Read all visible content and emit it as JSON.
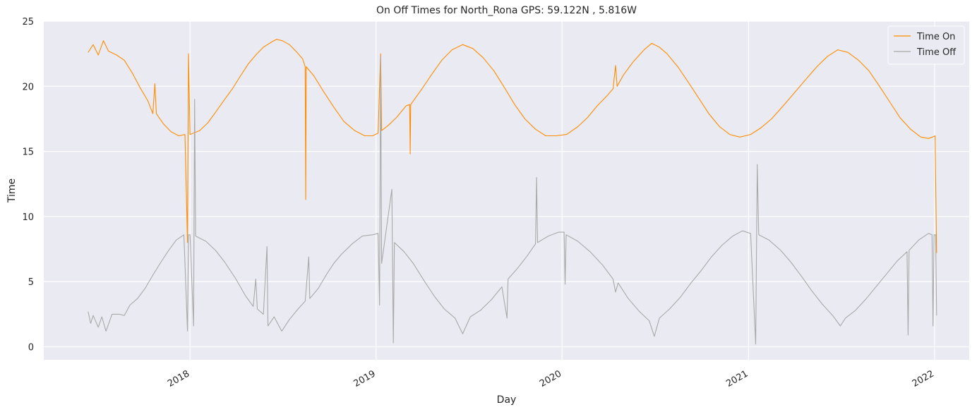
{
  "chart_data": {
    "type": "line",
    "title": "On Off Times for North_Rona  GPS: 59.122N , 5.816W",
    "xlabel": "Day",
    "ylabel": "Time",
    "xlim": [
      "2017-03-20",
      "2022-03-10"
    ],
    "ylim": [
      -1,
      25
    ],
    "x_ticks": [
      {
        "date": "2018-01-01",
        "label": "2018"
      },
      {
        "date": "2019-01-01",
        "label": "2019"
      },
      {
        "date": "2020-01-01",
        "label": "2020"
      },
      {
        "date": "2021-01-01",
        "label": "2021"
      },
      {
        "date": "2022-01-01",
        "label": "2022"
      }
    ],
    "y_ticks": [
      0,
      5,
      10,
      15,
      20,
      25
    ],
    "grid": true,
    "legend": "top-right",
    "series": [
      {
        "name": "Time On",
        "color": "#ff8c00",
        "points": [
          [
            "2017-06-15",
            22.6
          ],
          [
            "2017-06-25",
            23.2
          ],
          [
            "2017-07-05",
            22.4
          ],
          [
            "2017-07-15",
            23.5
          ],
          [
            "2017-07-25",
            22.7
          ],
          [
            "2017-08-10",
            22.4
          ],
          [
            "2017-08-25",
            22.0
          ],
          [
            "2017-09-10",
            21.0
          ],
          [
            "2017-09-25",
            19.9
          ],
          [
            "2017-10-10",
            18.9
          ],
          [
            "2017-10-20",
            17.9
          ],
          [
            "2017-10-24",
            20.2
          ],
          [
            "2017-10-27",
            17.9
          ],
          [
            "2017-11-10",
            17.1
          ],
          [
            "2017-11-25",
            16.5
          ],
          [
            "2017-12-10",
            16.2
          ],
          [
            "2017-12-22",
            16.3
          ],
          [
            "2017-12-27",
            8.0
          ],
          [
            "2017-12-29",
            22.5
          ],
          [
            "2018-01-01",
            16.3
          ],
          [
            "2018-01-20",
            16.6
          ],
          [
            "2018-02-05",
            17.2
          ],
          [
            "2018-02-20",
            18.0
          ],
          [
            "2018-03-10",
            19.0
          ],
          [
            "2018-03-25",
            19.8
          ],
          [
            "2018-04-10",
            20.8
          ],
          [
            "2018-04-25",
            21.7
          ],
          [
            "2018-05-10",
            22.4
          ],
          [
            "2018-05-25",
            23.0
          ],
          [
            "2018-06-10",
            23.4
          ],
          [
            "2018-06-20",
            23.6
          ],
          [
            "2018-07-01",
            23.5
          ],
          [
            "2018-07-15",
            23.2
          ],
          [
            "2018-07-30",
            22.6
          ],
          [
            "2018-08-10",
            22.1
          ],
          [
            "2018-08-15",
            21.5
          ],
          [
            "2018-08-16",
            11.3
          ],
          [
            "2018-08-17",
            21.5
          ],
          [
            "2018-09-01",
            20.8
          ],
          [
            "2018-09-20",
            19.6
          ],
          [
            "2018-10-10",
            18.4
          ],
          [
            "2018-10-30",
            17.3
          ],
          [
            "2018-11-20",
            16.6
          ],
          [
            "2018-12-10",
            16.2
          ],
          [
            "2018-12-25",
            16.2
          ],
          [
            "2019-01-05",
            16.4
          ],
          [
            "2019-01-10",
            22.5
          ],
          [
            "2019-01-12",
            16.6
          ],
          [
            "2019-01-25",
            17.0
          ],
          [
            "2019-02-10",
            17.6
          ],
          [
            "2019-03-01",
            18.5
          ],
          [
            "2019-03-08",
            18.6
          ],
          [
            "2019-03-09",
            14.8
          ],
          [
            "2019-03-10",
            18.6
          ],
          [
            "2019-04-01",
            19.8
          ],
          [
            "2019-04-20",
            20.9
          ],
          [
            "2019-05-10",
            22.0
          ],
          [
            "2019-05-30",
            22.8
          ],
          [
            "2019-06-20",
            23.2
          ],
          [
            "2019-07-10",
            22.9
          ],
          [
            "2019-07-30",
            22.2
          ],
          [
            "2019-08-20",
            21.2
          ],
          [
            "2019-09-10",
            19.9
          ],
          [
            "2019-09-30",
            18.6
          ],
          [
            "2019-10-20",
            17.5
          ],
          [
            "2019-11-10",
            16.7
          ],
          [
            "2019-11-30",
            16.2
          ],
          [
            "2019-12-20",
            16.2
          ],
          [
            "2020-01-10",
            16.3
          ],
          [
            "2020-02-01",
            16.9
          ],
          [
            "2020-02-20",
            17.6
          ],
          [
            "2020-03-10",
            18.5
          ],
          [
            "2020-03-30",
            19.3
          ],
          [
            "2020-04-10",
            19.8
          ],
          [
            "2020-04-15",
            21.6
          ],
          [
            "2020-04-18",
            20.0
          ],
          [
            "2020-05-01",
            20.9
          ],
          [
            "2020-05-20",
            21.9
          ],
          [
            "2020-06-10",
            22.8
          ],
          [
            "2020-06-25",
            23.3
          ],
          [
            "2020-07-10",
            23.0
          ],
          [
            "2020-07-25",
            22.5
          ],
          [
            "2020-08-15",
            21.5
          ],
          [
            "2020-09-05",
            20.3
          ],
          [
            "2020-09-25",
            19.1
          ],
          [
            "2020-10-15",
            17.9
          ],
          [
            "2020-11-05",
            16.9
          ],
          [
            "2020-11-25",
            16.3
          ],
          [
            "2020-12-15",
            16.1
          ],
          [
            "2021-01-05",
            16.3
          ],
          [
            "2021-01-25",
            16.8
          ],
          [
            "2021-02-15",
            17.5
          ],
          [
            "2021-03-10",
            18.5
          ],
          [
            "2021-04-01",
            19.5
          ],
          [
            "2021-04-25",
            20.6
          ],
          [
            "2021-05-15",
            21.5
          ],
          [
            "2021-06-05",
            22.3
          ],
          [
            "2021-06-25",
            22.8
          ],
          [
            "2021-07-15",
            22.6
          ],
          [
            "2021-08-05",
            22.0
          ],
          [
            "2021-08-25",
            21.2
          ],
          [
            "2021-09-15",
            20.0
          ],
          [
            "2021-10-05",
            18.8
          ],
          [
            "2021-10-25",
            17.6
          ],
          [
            "2021-11-15",
            16.7
          ],
          [
            "2021-12-05",
            16.1
          ],
          [
            "2021-12-20",
            16.0
          ],
          [
            "2021-12-28",
            16.1
          ],
          [
            "2022-01-02",
            16.2
          ],
          [
            "2022-01-05",
            7.2
          ]
        ]
      },
      {
        "name": "Time Off",
        "color": "#a9a9a9",
        "points": [
          [
            "2017-06-15",
            2.7
          ],
          [
            "2017-06-20",
            1.8
          ],
          [
            "2017-06-25",
            2.4
          ],
          [
            "2017-07-05",
            1.5
          ],
          [
            "2017-07-12",
            2.3
          ],
          [
            "2017-07-20",
            1.2
          ],
          [
            "2017-08-01",
            2.5
          ],
          [
            "2017-08-15",
            2.5
          ],
          [
            "2017-08-25",
            2.4
          ],
          [
            "2017-09-05",
            3.2
          ],
          [
            "2017-09-20",
            3.7
          ],
          [
            "2017-10-05",
            4.5
          ],
          [
            "2017-10-20",
            5.5
          ],
          [
            "2017-11-05",
            6.5
          ],
          [
            "2017-11-20",
            7.4
          ],
          [
            "2017-12-05",
            8.2
          ],
          [
            "2017-12-20",
            8.6
          ],
          [
            "2017-12-27",
            1.2
          ],
          [
            "2017-12-29",
            8.6
          ],
          [
            "2018-01-01",
            8.6
          ],
          [
            "2018-01-08",
            1.6
          ],
          [
            "2018-01-10",
            19.0
          ],
          [
            "2018-01-12",
            8.5
          ],
          [
            "2018-02-01",
            8.1
          ],
          [
            "2018-02-20",
            7.4
          ],
          [
            "2018-03-10",
            6.5
          ],
          [
            "2018-04-01",
            5.2
          ],
          [
            "2018-04-20",
            3.9
          ],
          [
            "2018-05-05",
            3.1
          ],
          [
            "2018-05-10",
            5.2
          ],
          [
            "2018-05-13",
            2.9
          ],
          [
            "2018-05-25",
            2.5
          ],
          [
            "2018-06-01",
            7.7
          ],
          [
            "2018-06-03",
            1.6
          ],
          [
            "2018-06-15",
            2.3
          ],
          [
            "2018-06-30",
            1.2
          ],
          [
            "2018-07-15",
            2.1
          ],
          [
            "2018-08-01",
            2.9
          ],
          [
            "2018-08-15",
            3.5
          ],
          [
            "2018-08-22",
            6.9
          ],
          [
            "2018-08-24",
            3.7
          ],
          [
            "2018-09-10",
            4.5
          ],
          [
            "2018-09-25",
            5.5
          ],
          [
            "2018-10-10",
            6.4
          ],
          [
            "2018-10-25",
            7.1
          ],
          [
            "2018-11-15",
            7.9
          ],
          [
            "2018-12-05",
            8.5
          ],
          [
            "2018-12-25",
            8.6
          ],
          [
            "2019-01-05",
            8.7
          ],
          [
            "2019-01-08",
            3.2
          ],
          [
            "2019-01-10",
            22.3
          ],
          [
            "2019-01-12",
            6.4
          ],
          [
            "2019-02-01",
            12.1
          ],
          [
            "2019-02-04",
            0.3
          ],
          [
            "2019-02-06",
            8.0
          ],
          [
            "2019-02-25",
            7.3
          ],
          [
            "2019-03-15",
            6.4
          ],
          [
            "2019-04-05",
            5.1
          ],
          [
            "2019-04-25",
            3.9
          ],
          [
            "2019-05-15",
            2.9
          ],
          [
            "2019-06-05",
            2.2
          ],
          [
            "2019-06-20",
            1.0
          ],
          [
            "2019-07-05",
            2.3
          ],
          [
            "2019-07-25",
            2.8
          ],
          [
            "2019-08-15",
            3.6
          ],
          [
            "2019-09-05",
            4.6
          ],
          [
            "2019-09-15",
            2.2
          ],
          [
            "2019-09-17",
            5.2
          ],
          [
            "2019-10-05",
            6.0
          ],
          [
            "2019-10-25",
            7.0
          ],
          [
            "2019-11-10",
            7.9
          ],
          [
            "2019-11-12",
            13.0
          ],
          [
            "2019-11-14",
            8.0
          ],
          [
            "2019-12-05",
            8.5
          ],
          [
            "2019-12-25",
            8.8
          ],
          [
            "2020-01-05",
            8.8
          ],
          [
            "2020-01-07",
            4.8
          ],
          [
            "2020-01-09",
            8.6
          ],
          [
            "2020-02-01",
            8.1
          ],
          [
            "2020-02-25",
            7.3
          ],
          [
            "2020-03-20",
            6.3
          ],
          [
            "2020-04-10",
            5.2
          ],
          [
            "2020-04-15",
            4.2
          ],
          [
            "2020-04-20",
            4.9
          ],
          [
            "2020-05-10",
            3.7
          ],
          [
            "2020-06-01",
            2.7
          ],
          [
            "2020-06-20",
            2.0
          ],
          [
            "2020-06-30",
            0.8
          ],
          [
            "2020-07-10",
            2.2
          ],
          [
            "2020-07-30",
            2.9
          ],
          [
            "2020-08-20",
            3.8
          ],
          [
            "2020-09-10",
            4.9
          ],
          [
            "2020-10-01",
            5.9
          ],
          [
            "2020-10-20",
            6.9
          ],
          [
            "2020-11-10",
            7.8
          ],
          [
            "2020-12-01",
            8.5
          ],
          [
            "2020-12-20",
            8.9
          ],
          [
            "2021-01-05",
            8.7
          ],
          [
            "2021-01-15",
            0.2
          ],
          [
            "2021-01-18",
            14.0
          ],
          [
            "2021-01-21",
            8.6
          ],
          [
            "2021-02-10",
            8.2
          ],
          [
            "2021-03-05",
            7.4
          ],
          [
            "2021-03-25",
            6.5
          ],
          [
            "2021-04-15",
            5.4
          ],
          [
            "2021-05-05",
            4.3
          ],
          [
            "2021-05-25",
            3.3
          ],
          [
            "2021-06-15",
            2.4
          ],
          [
            "2021-06-30",
            1.6
          ],
          [
            "2021-07-10",
            2.2
          ],
          [
            "2021-07-30",
            2.8
          ],
          [
            "2021-08-20",
            3.7
          ],
          [
            "2021-09-10",
            4.7
          ],
          [
            "2021-10-01",
            5.7
          ],
          [
            "2021-10-20",
            6.6
          ],
          [
            "2021-11-08",
            7.3
          ],
          [
            "2021-11-10",
            0.9
          ],
          [
            "2021-11-12",
            7.4
          ],
          [
            "2021-12-01",
            8.2
          ],
          [
            "2021-12-20",
            8.7
          ],
          [
            "2021-12-27",
            8.6
          ],
          [
            "2021-12-29",
            1.6
          ],
          [
            "2021-12-31",
            8.6
          ],
          [
            "2022-01-03",
            8.6
          ],
          [
            "2022-01-05",
            2.4
          ]
        ]
      }
    ]
  }
}
